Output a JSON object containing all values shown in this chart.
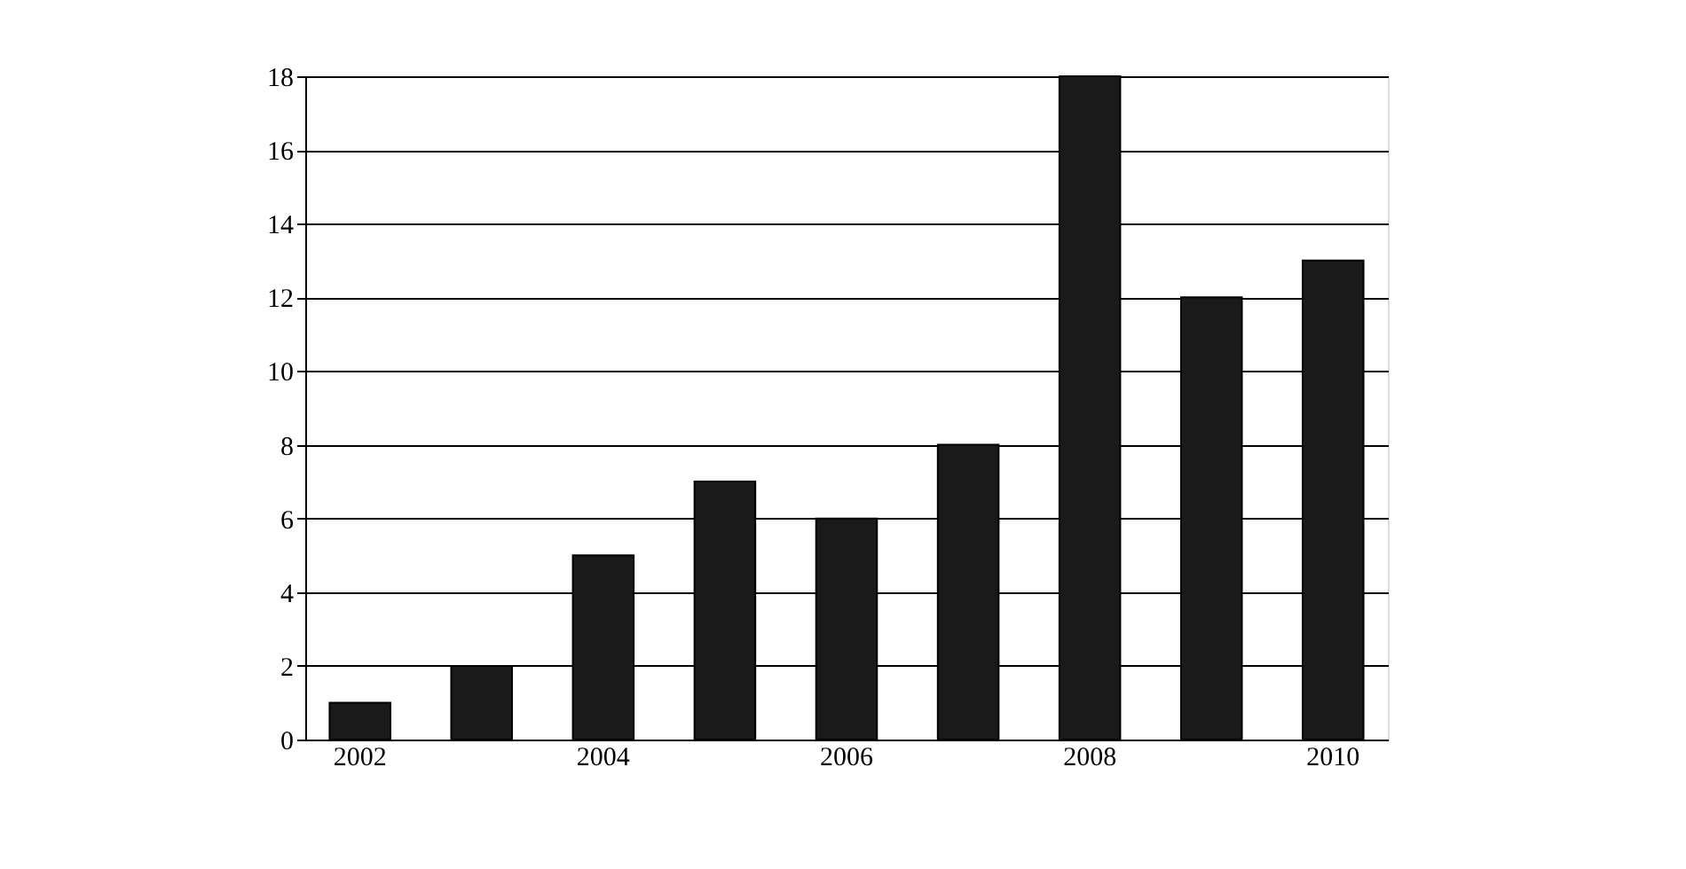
{
  "chart_data": {
    "type": "bar",
    "categories": [
      "2002",
      null,
      "2004",
      null,
      "2006",
      null,
      "2008",
      null,
      "2010"
    ],
    "values": [
      1,
      2,
      5,
      7,
      6,
      8,
      18,
      12,
      13
    ],
    "color": "#1a1a1a",
    "ylim": [
      0,
      18
    ],
    "yticks": [
      0,
      2,
      4,
      6,
      8,
      10,
      12,
      14,
      16,
      18
    ],
    "grid": "y"
  }
}
